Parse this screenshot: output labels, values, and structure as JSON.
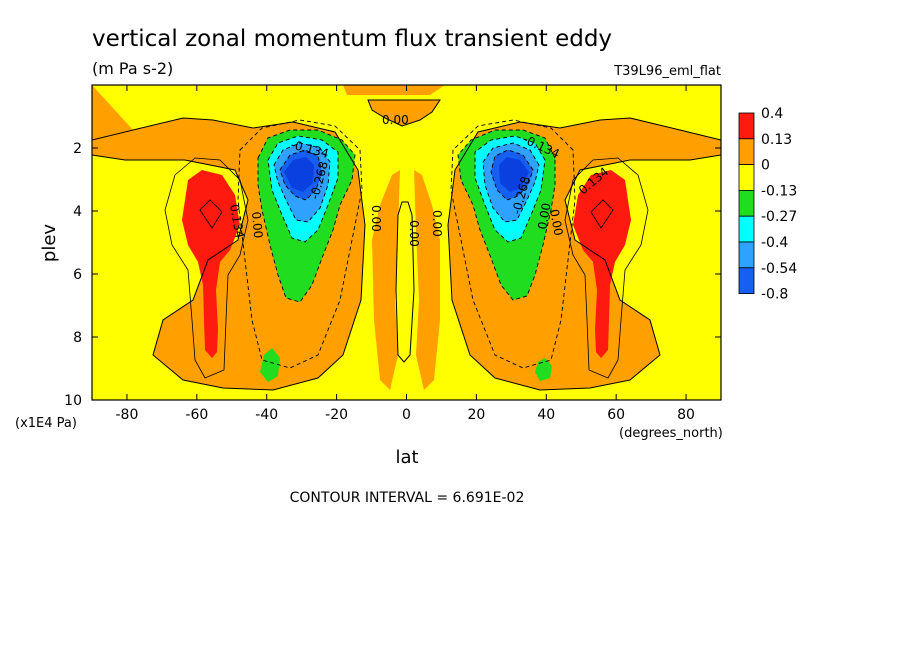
{
  "chart_data": {
    "type": "heatmap",
    "title": "vertical zonal momentum flux transient eddy",
    "units": "(m Pa s-2)",
    "dataset": "T39L96_eml_flat",
    "xlabel": "lat",
    "x_units": "(degrees_north)",
    "ylabel": "plev",
    "y_units": "(x1E4 Pa)",
    "xlim": [
      -90,
      90
    ],
    "ylim": [
      0,
      10
    ],
    "y_inverted": true,
    "x_ticks": [
      "-80",
      "-60",
      "-40",
      "-20",
      "0",
      "20",
      "40",
      "60",
      "80"
    ],
    "x_tick_values": [
      -80,
      -60,
      -40,
      -20,
      0,
      20,
      40,
      60,
      80
    ],
    "y_ticks": [
      "2",
      "4",
      "6",
      "8",
      "10"
    ],
    "y_tick_values": [
      2,
      4,
      6,
      8,
      10
    ],
    "footer": "CONTOUR INTERVAL = 6.691E-02",
    "colorbar": {
      "labels": [
        "0.4",
        "0.13",
        "0",
        "-0.13",
        "-0.27",
        "-0.4",
        "-0.54",
        "-0.8"
      ],
      "colors": [
        "#ff1a10",
        "#ff9f00",
        "#ffff00",
        "#20dd20",
        "#00ffff",
        "#2fa2ff",
        "#1560f0"
      ]
    },
    "contour_labels": [
      "0.134",
      "0.00",
      "-0.134",
      "-0.268",
      "0.00",
      "0.00",
      "0.00",
      "0.00",
      "-0.134",
      "-0.268",
      "0.00",
      "0.134",
      "0.00"
    ],
    "features": [
      {
        "name": "negative core SH",
        "lat": -31,
        "plev": 2.9,
        "min_value": -0.8
      },
      {
        "name": "negative core NH",
        "lat": 31,
        "plev": 2.9,
        "min_value": -0.8
      },
      {
        "name": "positive core SH",
        "lat": -56,
        "plev": 4.2,
        "max_value": 0.4
      },
      {
        "name": "positive core NH",
        "lat": 56,
        "plev": 4.2,
        "max_value": 0.4
      }
    ]
  }
}
